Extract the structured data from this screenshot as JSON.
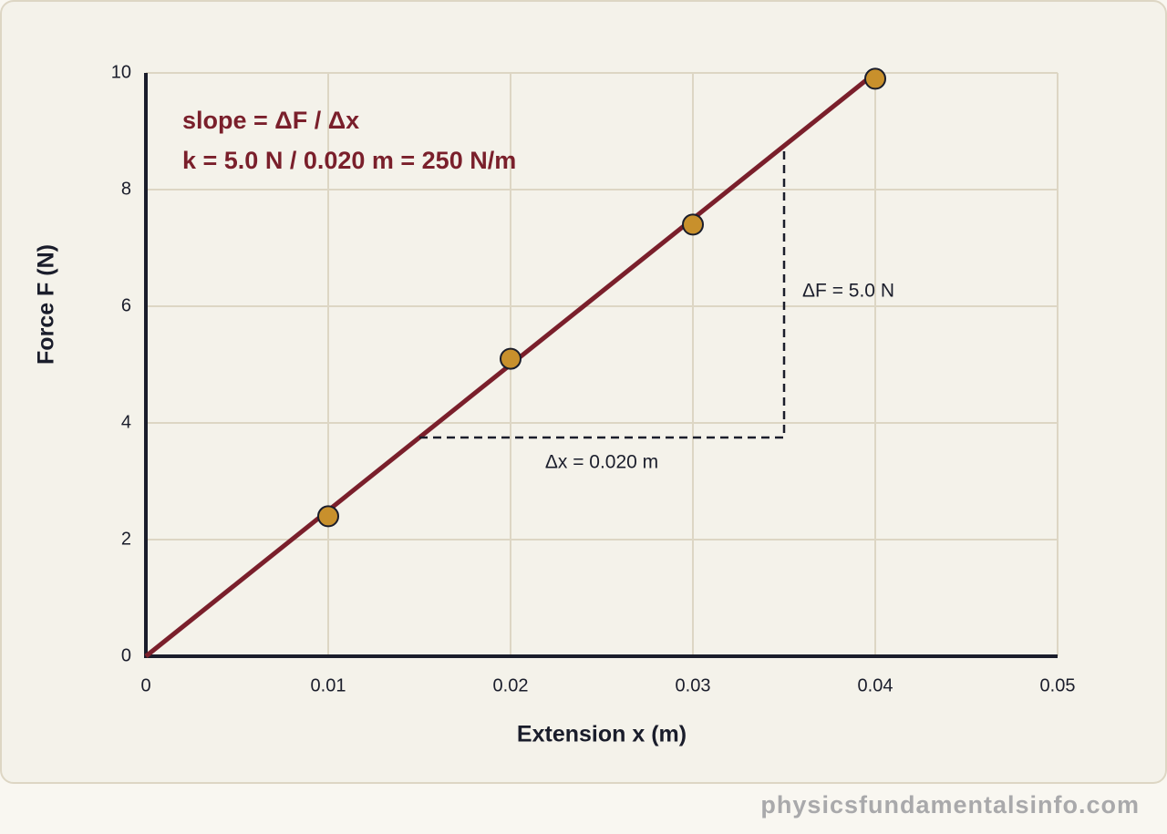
{
  "chart_data": {
    "type": "scatter",
    "x_label": "Extension x (m)",
    "y_label": "Force F (N)",
    "xlim": [
      0,
      0.05
    ],
    "xticks": [
      0,
      0.01,
      0.02,
      0.03,
      0.04,
      0.05
    ],
    "ylim": [
      0,
      10
    ],
    "yticks": [
      0,
      2,
      4,
      6,
      8,
      10
    ],
    "grid": true,
    "series": [
      {
        "mode": "line",
        "color": "#7a1f2b",
        "x": [
          0,
          0.04
        ],
        "values": [
          0,
          10
        ]
      },
      {
        "mode": "dashed",
        "color": "#1a1d2b",
        "x": [
          0.015,
          0.035,
          0.035
        ],
        "values": [
          3.75,
          3.75,
          8.75
        ]
      },
      {
        "mode": "markers",
        "color": "#c8902c",
        "x": [
          0.01,
          0.02,
          0.03,
          0.04
        ],
        "values": [
          2.4,
          5.1,
          7.4,
          9.9
        ]
      }
    ],
    "annotations": [
      "slope = ΔF / Δx",
      "k = 5.0 N / 0.020 m = 250 N/m",
      "ΔF = 5.0 N",
      "Δx = 0.020 m"
    ]
  },
  "footer": "physicsfundamentalsinfo.com"
}
